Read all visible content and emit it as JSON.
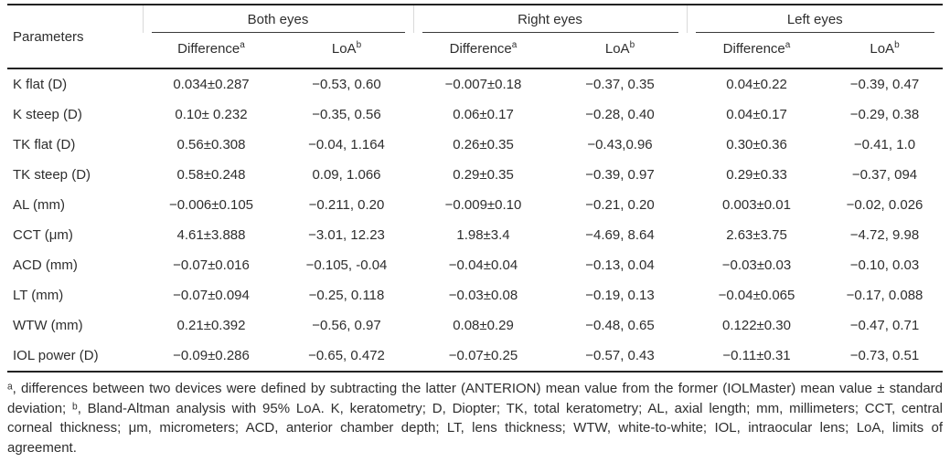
{
  "table": {
    "param_header": "Parameters",
    "groups": [
      {
        "label": "Both eyes"
      },
      {
        "label": "Right eyes"
      },
      {
        "label": "Left eyes"
      }
    ],
    "subheaders": {
      "difference": {
        "label": "Difference",
        "sup": "a"
      },
      "loa": {
        "label": "LoA",
        "sup": "b"
      }
    },
    "rows": [
      [
        "K flat (D)",
        "0.034±0.287",
        "−0.53, 0.60",
        "−0.007±0.18",
        "−0.37, 0.35",
        "0.04±0.22",
        "−0.39, 0.47"
      ],
      [
        "K steep (D)",
        "0.10± 0.232",
        "−0.35, 0.56",
        "0.06±0.17",
        "−0.28, 0.40",
        "0.04±0.17",
        "−0.29, 0.38"
      ],
      [
        "TK flat (D)",
        "0.56±0.308",
        "−0.04, 1.164",
        "0.26±0.35",
        "−0.43,0.96",
        "0.30±0.36",
        "−0.41, 1.0"
      ],
      [
        "TK steep (D)",
        "0.58±0.248",
        "0.09, 1.066",
        "0.29±0.35",
        "−0.39, 0.97",
        "0.29±0.33",
        "−0.37, 094"
      ],
      [
        "AL (mm)",
        "−0.006±0.105",
        "−0.211, 0.20",
        "−0.009±0.10",
        "−0.21, 0.20",
        "0.003±0.01",
        "−0.02, 0.026"
      ],
      [
        "CCT (μm)",
        "4.61±3.888",
        "−3.01, 12.23",
        "1.98±3.4",
        "−4.69, 8.64",
        "2.63±3.75",
        "−4.72, 9.98"
      ],
      [
        "ACD (mm)",
        "−0.07±0.016",
        "−0.105, -0.04",
        "−0.04±0.04",
        "−0.13, 0.04",
        "−0.03±0.03",
        "−0.10, 0.03"
      ],
      [
        "LT (mm)",
        "−0.07±0.094",
        "−0.25, 0.118",
        "−0.03±0.08",
        "−0.19, 0.13",
        "−0.04±0.065",
        "−0.17, 0.088"
      ],
      [
        "WTW (mm)",
        "0.21±0.392",
        "−0.56, 0.97",
        "0.08±0.29",
        "−0.48, 0.65",
        "0.122±0.30",
        "−0.47, 0.71"
      ],
      [
        "IOL power (D)",
        "−0.09±0.286",
        "−0.65, 0.472",
        "−0.07±0.25",
        "−0.57, 0.43",
        "−0.11±0.31",
        "−0.73, 0.51"
      ]
    ],
    "footnote": "ᵃ, differences between two devices were defined by subtracting the latter (ANTERION) mean value from the former (IOLMaster) mean value ± standard deviation; ᵇ, Bland-Altman analysis with 95% LoA. K, keratometry; D, Diopter; TK, total keratometry; AL, axial length; mm, millimeters; CCT, central corneal thickness; μm, micrometers; ACD, anterior chamber depth; LT, lens thickness; WTW, white-to-white; IOL, intraocular lens; LoA, limits of agreement."
  },
  "colors": {
    "rule": "#222222",
    "text": "#2e2e2e",
    "group_separator": "#d9d9d9"
  }
}
